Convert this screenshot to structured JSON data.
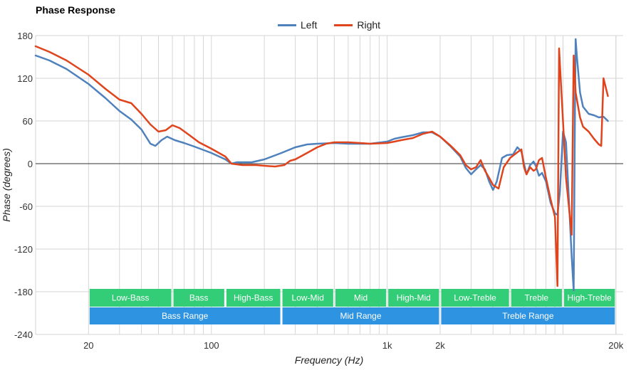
{
  "chart_data": {
    "type": "line",
    "title": "Phase Response",
    "xlabel": "Frequency (Hz)",
    "ylabel": "Phase (degrees)",
    "xscale": "log",
    "xlim": [
      10,
      22000
    ],
    "ylim": [
      -240,
      180
    ],
    "grid": true,
    "legend_position": "top-center",
    "x_tick_labels": [
      {
        "value": 20,
        "label": "20"
      },
      {
        "value": 100,
        "label": "100"
      },
      {
        "value": 1000,
        "label": "1k"
      },
      {
        "value": 2000,
        "label": "2k"
      },
      {
        "value": 20000,
        "label": "20k"
      }
    ],
    "y_ticks": [
      180,
      120,
      60,
      0,
      -60,
      -120,
      -180,
      -240
    ],
    "series": [
      {
        "name": "Left",
        "color": "#4f81bd",
        "points": [
          [
            10,
            152
          ],
          [
            12,
            145
          ],
          [
            15,
            133
          ],
          [
            20,
            112
          ],
          [
            25,
            92
          ],
          [
            30,
            74
          ],
          [
            35,
            62
          ],
          [
            40,
            48
          ],
          [
            45,
            28
          ],
          [
            48,
            25
          ],
          [
            52,
            33
          ],
          [
            56,
            38
          ],
          [
            62,
            33
          ],
          [
            70,
            29
          ],
          [
            80,
            24
          ],
          [
            100,
            15
          ],
          [
            120,
            6
          ],
          [
            130,
            0
          ],
          [
            140,
            2
          ],
          [
            150,
            2
          ],
          [
            170,
            2
          ],
          [
            200,
            6
          ],
          [
            250,
            15
          ],
          [
            300,
            23
          ],
          [
            350,
            27
          ],
          [
            400,
            28
          ],
          [
            500,
            29
          ],
          [
            600,
            28
          ],
          [
            700,
            28
          ],
          [
            800,
            28
          ],
          [
            1000,
            31
          ],
          [
            1100,
            35
          ],
          [
            1200,
            37
          ],
          [
            1400,
            40
          ],
          [
            1600,
            44
          ],
          [
            1800,
            44
          ],
          [
            2000,
            38
          ],
          [
            2300,
            24
          ],
          [
            2600,
            10
          ],
          [
            2800,
            -6
          ],
          [
            3000,
            -15
          ],
          [
            3200,
            -8
          ],
          [
            3400,
            -2
          ],
          [
            3600,
            -8
          ],
          [
            3800,
            -25
          ],
          [
            4000,
            -37
          ],
          [
            4200,
            -25
          ],
          [
            4500,
            8
          ],
          [
            4800,
            12
          ],
          [
            5200,
            13
          ],
          [
            5500,
            23
          ],
          [
            5800,
            17
          ],
          [
            6000,
            0
          ],
          [
            6200,
            -15
          ],
          [
            6500,
            -2
          ],
          [
            6800,
            3
          ],
          [
            7000,
            -3
          ],
          [
            7300,
            -17
          ],
          [
            7600,
            -13
          ],
          [
            8000,
            -25
          ],
          [
            8500,
            -55
          ],
          [
            9000,
            -70
          ],
          [
            9300,
            -72
          ],
          [
            9600,
            -40
          ],
          [
            10000,
            45
          ],
          [
            10400,
            30
          ],
          [
            10800,
            -50
          ],
          [
            11200,
            -130
          ],
          [
            11500,
            -178
          ],
          [
            11700,
            80
          ],
          [
            11800,
            175
          ],
          [
            12000,
            150
          ],
          [
            12500,
            100
          ],
          [
            13000,
            80
          ],
          [
            14000,
            70
          ],
          [
            15000,
            68
          ],
          [
            16000,
            65
          ],
          [
            17000,
            66
          ],
          [
            18000,
            60
          ]
        ]
      },
      {
        "name": "Right",
        "color": "#e0441c",
        "points": [
          [
            10,
            165
          ],
          [
            12,
            157
          ],
          [
            15,
            145
          ],
          [
            20,
            125
          ],
          [
            25,
            105
          ],
          [
            30,
            90
          ],
          [
            35,
            85
          ],
          [
            40,
            70
          ],
          [
            45,
            55
          ],
          [
            50,
            45
          ],
          [
            55,
            47
          ],
          [
            60,
            54
          ],
          [
            66,
            50
          ],
          [
            75,
            40
          ],
          [
            85,
            30
          ],
          [
            100,
            21
          ],
          [
            120,
            10
          ],
          [
            130,
            0
          ],
          [
            150,
            -2
          ],
          [
            180,
            -2
          ],
          [
            200,
            -3
          ],
          [
            230,
            -4
          ],
          [
            260,
            -2
          ],
          [
            280,
            4
          ],
          [
            300,
            6
          ],
          [
            350,
            15
          ],
          [
            400,
            23
          ],
          [
            450,
            28
          ],
          [
            500,
            30
          ],
          [
            600,
            30
          ],
          [
            700,
            29
          ],
          [
            800,
            28
          ],
          [
            1000,
            29
          ],
          [
            1100,
            31
          ],
          [
            1200,
            33
          ],
          [
            1400,
            36
          ],
          [
            1600,
            42
          ],
          [
            1800,
            45
          ],
          [
            2000,
            38
          ],
          [
            2300,
            25
          ],
          [
            2600,
            12
          ],
          [
            2800,
            -2
          ],
          [
            3000,
            -8
          ],
          [
            3200,
            -5
          ],
          [
            3400,
            5
          ],
          [
            3600,
            -10
          ],
          [
            3800,
            -20
          ],
          [
            4000,
            -30
          ],
          [
            4300,
            -35
          ],
          [
            4600,
            -5
          ],
          [
            5000,
            8
          ],
          [
            5500,
            16
          ],
          [
            5800,
            20
          ],
          [
            6000,
            -5
          ],
          [
            6200,
            -15
          ],
          [
            6500,
            -5
          ],
          [
            6800,
            -10
          ],
          [
            7000,
            -8
          ],
          [
            7300,
            5
          ],
          [
            7600,
            8
          ],
          [
            8000,
            -20
          ],
          [
            8500,
            -50
          ],
          [
            9000,
            -75
          ],
          [
            9300,
            -172
          ],
          [
            9500,
            162
          ],
          [
            9700,
            120
          ],
          [
            10000,
            60
          ],
          [
            10400,
            -20
          ],
          [
            10800,
            -60
          ],
          [
            11200,
            -100
          ],
          [
            11500,
            152
          ],
          [
            11800,
            100
          ],
          [
            12500,
            65
          ],
          [
            13000,
            52
          ],
          [
            14000,
            45
          ],
          [
            15000,
            35
          ],
          [
            16000,
            27
          ],
          [
            16500,
            25
          ],
          [
            17000,
            120
          ],
          [
            18000,
            95
          ]
        ]
      }
    ],
    "bands_upper": [
      {
        "label": "Low-Bass",
        "from": 20,
        "to": 60
      },
      {
        "label": "Bass",
        "from": 60,
        "to": 120
      },
      {
        "label": "High-Bass",
        "from": 120,
        "to": 250
      },
      {
        "label": "Low-Mid",
        "from": 250,
        "to": 500
      },
      {
        "label": "Mid",
        "from": 500,
        "to": 1000
      },
      {
        "label": "High-Mid",
        "from": 1000,
        "to": 2000
      },
      {
        "label": "Low-Treble",
        "from": 2000,
        "to": 5000
      },
      {
        "label": "Treble",
        "from": 5000,
        "to": 10000
      },
      {
        "label": "High-Treble",
        "from": 10000,
        "to": 20000
      }
    ],
    "bands_lower": [
      {
        "label": "Bass Range",
        "from": 20,
        "to": 250
      },
      {
        "label": "Mid Range",
        "from": 250,
        "to": 2000
      },
      {
        "label": "Treble Range",
        "from": 2000,
        "to": 20000
      }
    ],
    "band_colors": {
      "upper": "#33cc77",
      "lower": "#2e93e0"
    }
  }
}
